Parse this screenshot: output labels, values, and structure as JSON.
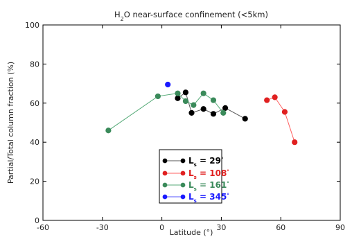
{
  "chart_data": {
    "type": "line",
    "title_main": "H",
    "title_sub": "2",
    "title_rest": "O near-surface confinement (<5km)",
    "xlabel": "Latitude (°)",
    "ylabel": "Partial/Total column fraction (%)",
    "xlim": [
      -60,
      90
    ],
    "ylim": [
      0,
      100
    ],
    "xticks": [
      "-60",
      "-30",
      "0",
      "30",
      "60",
      "90"
    ],
    "yticks": [
      "0",
      "20",
      "40",
      "60",
      "80",
      "100"
    ],
    "grid": false,
    "legend_position": "lower-center",
    "series": [
      {
        "name_main": "L",
        "name_sub": "s",
        "name_value": "= 29",
        "name_unit": "°",
        "color": "#000000",
        "line_color": "#555555",
        "x": [
          8,
          12,
          15,
          21,
          26,
          32,
          42
        ],
        "y": [
          62.5,
          65.5,
          55,
          57,
          54.5,
          57.5,
          52
        ]
      },
      {
        "name_main": "L",
        "name_sub": "s",
        "name_value": "= 108",
        "name_unit": "°",
        "color": "#e02020",
        "line_color": "#ff6060",
        "x": [
          53,
          57,
          62,
          67
        ],
        "y": [
          61.5,
          63,
          55.5,
          40
        ]
      },
      {
        "name_main": "L",
        "name_sub": "s",
        "name_value": "= 161",
        "name_unit": "°",
        "color": "#3a8a5a",
        "line_color": "#55aa77",
        "x": [
          -27,
          -2,
          8,
          12,
          16,
          21,
          26,
          31
        ],
        "y": [
          46,
          63.5,
          65,
          61,
          59,
          65,
          61.5,
          55
        ]
      },
      {
        "name_main": "L",
        "name_sub": "s",
        "name_value": "= 345",
        "name_unit": "°",
        "color": "#1a1aff",
        "line_color": "#5555ff",
        "x": [
          3
        ],
        "y": [
          69.5
        ]
      }
    ]
  }
}
